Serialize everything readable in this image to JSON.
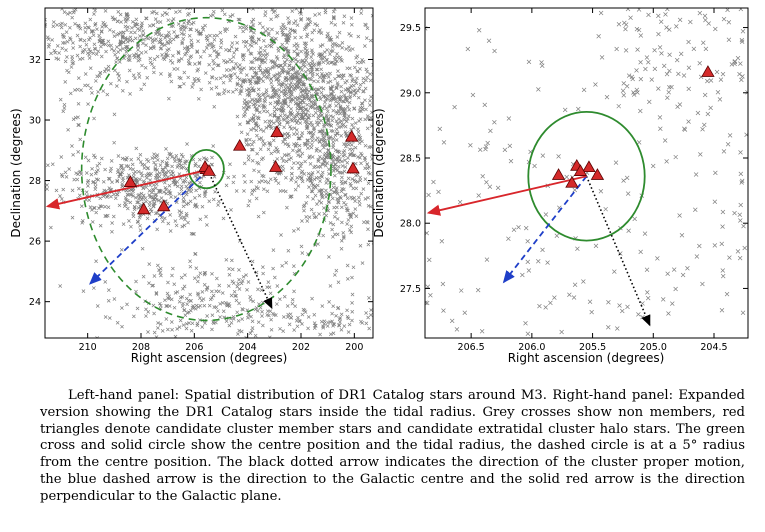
{
  "caption": "Left-hand panel: Spatial distribution of DR1 Catalog stars around M3. Right-hand panel: Expanded version showing the DR1 Catalog stars inside the tidal radius. Grey crosses show non members, red triangles denote candidate cluster member stars and candidate extratidal cluster halo stars. The green cross and solid circle show the centre position and the tidal radius, the dashed circle is at a 5° radius from the centre position. The black dotted arrow indicates the direction of the cluster proper motion, the blue dashed arrow is the direction to the Galactic centre and the solid red arrow is the direction perpendicular to the Galactic plane.",
  "colors": {
    "nonmember": "#7f7f7f",
    "triangle_fill": "#d42a2a",
    "triangle_edge": "#5a0000",
    "green": "#2e8b2e",
    "blue": "#1f3fc8",
    "red": "#d8262b",
    "black": "#000000"
  },
  "chart_data": [
    {
      "type": "scatter",
      "panel": "left",
      "xlabel": "Right ascension (degrees)",
      "ylabel": "Declination (degrees)",
      "xlim": [
        211.6,
        199.3
      ],
      "ylim": [
        22.8,
        33.7
      ],
      "xticks": [
        210,
        208,
        206,
        204,
        202,
        200
      ],
      "yticks": [
        24,
        26,
        28,
        30,
        32
      ],
      "center": {
        "ra": 205.55,
        "dec": 28.38
      },
      "tidal_radius_deg": 0.47,
      "dashed_radius_deg": 5,
      "member_triangles": [
        {
          "ra": 205.55,
          "dec": 28.38
        },
        {
          "ra": 205.6,
          "dec": 28.45
        },
        {
          "ra": 205.45,
          "dec": 28.32
        },
        {
          "ra": 208.4,
          "dec": 27.95
        },
        {
          "ra": 207.9,
          "dec": 27.05
        },
        {
          "ra": 207.15,
          "dec": 27.15
        },
        {
          "ra": 204.3,
          "dec": 29.15
        },
        {
          "ra": 202.9,
          "dec": 29.6
        },
        {
          "ra": 202.95,
          "dec": 28.45
        },
        {
          "ra": 200.1,
          "dec": 29.45
        },
        {
          "ra": 200.05,
          "dec": 28.4
        }
      ],
      "arrows": {
        "proper_motion": {
          "from": [
            205.5,
            28.35
          ],
          "to": [
            203.1,
            23.8
          ]
        },
        "galactic_centre": {
          "from": [
            205.5,
            28.35
          ],
          "to": [
            209.9,
            24.6
          ]
        },
        "perpendicular_plane": {
          "from": [
            205.5,
            28.35
          ],
          "to": [
            211.5,
            27.15
          ]
        }
      },
      "tick_labels_x": [
        "210",
        "208",
        "206",
        "204",
        "202",
        "200"
      ],
      "tick_labels_y": [
        "24",
        "26",
        "28",
        "30",
        "32"
      ]
    },
    {
      "type": "scatter",
      "panel": "right",
      "xlabel": "Right ascension (degrees)",
      "ylabel": "Declination (degrees)",
      "xlim": [
        206.88,
        204.22
      ],
      "ylim": [
        27.12,
        29.65
      ],
      "xticks": [
        206.5,
        206.0,
        205.5,
        205.0,
        204.5
      ],
      "yticks": [
        27.5,
        28.0,
        28.5,
        29.0,
        29.5
      ],
      "center": {
        "ra": 205.55,
        "dec": 28.36
      },
      "tidal_radius_deg": 0.47,
      "member_triangles": [
        {
          "ra": 205.78,
          "dec": 28.37
        },
        {
          "ra": 205.63,
          "dec": 28.44
        },
        {
          "ra": 205.53,
          "dec": 28.43
        },
        {
          "ra": 205.46,
          "dec": 28.37
        },
        {
          "ra": 205.6,
          "dec": 28.4
        },
        {
          "ra": 205.67,
          "dec": 28.31
        },
        {
          "ra": 204.55,
          "dec": 29.16
        }
      ],
      "arrows": {
        "proper_motion": {
          "from": [
            205.55,
            28.36
          ],
          "to": [
            205.03,
            27.22
          ]
        },
        "galactic_centre": {
          "from": [
            205.55,
            28.36
          ],
          "to": [
            206.23,
            27.55
          ]
        },
        "perpendicular_plane": {
          "from": [
            205.55,
            28.36
          ],
          "to": [
            206.85,
            28.08
          ]
        }
      },
      "tick_labels_x": [
        "206.5",
        "206.0",
        "205.5",
        "205.0",
        "204.5"
      ],
      "tick_labels_y": [
        "27.5",
        "28.0",
        "28.5",
        "29.0",
        "29.5"
      ]
    }
  ]
}
